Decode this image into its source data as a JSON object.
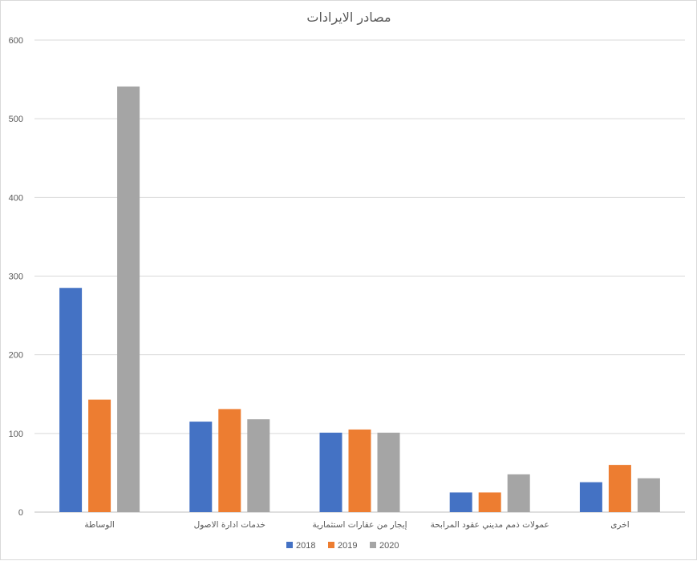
{
  "chart_data": {
    "type": "bar",
    "title": "مصادر الايرادات",
    "xlabel": "",
    "ylabel": "",
    "ylim": [
      0,
      600
    ],
    "yticks": [
      0,
      100,
      200,
      300,
      400,
      500,
      600
    ],
    "grid": true,
    "legend_position": "bottom",
    "categories": [
      "الوساطة",
      "خدمات ادارة الاصول",
      "إيجار من عقارات استثمارية",
      "عمولات ذمم مديني عقود المرابحة",
      "اخرى"
    ],
    "series": [
      {
        "name": "2018",
        "color": "#4472c4",
        "values": [
          285,
          115,
          101,
          25,
          38
        ]
      },
      {
        "name": "2019",
        "color": "#ed7d31",
        "values": [
          143,
          131,
          105,
          25,
          60
        ]
      },
      {
        "name": "2020",
        "color": "#a5a5a5",
        "values": [
          541,
          118,
          101,
          48,
          43
        ]
      }
    ]
  }
}
